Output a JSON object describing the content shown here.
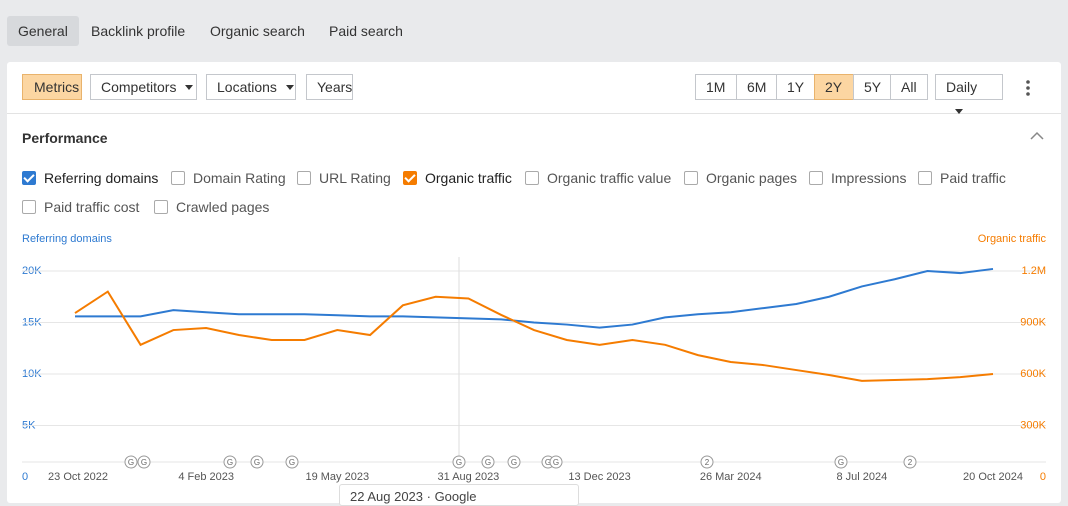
{
  "tabs": [
    "General",
    "Backlink profile",
    "Organic search",
    "Paid search"
  ],
  "toolbar": {
    "left": [
      "Metrics",
      "Competitors",
      "Locations",
      "Years"
    ],
    "ranges": [
      "1M",
      "6M",
      "1Y",
      "2Y",
      "5Y",
      "All"
    ],
    "interval": "Daily"
  },
  "section_title": "Performance",
  "metrics": [
    {
      "label": "Referring domains",
      "checked": true
    },
    {
      "label": "Domain Rating",
      "checked": false
    },
    {
      "label": "URL Rating",
      "checked": false
    },
    {
      "label": "Organic traffic",
      "checked": true
    },
    {
      "label": "Organic traffic value",
      "checked": false
    },
    {
      "label": "Organic pages",
      "checked": false
    },
    {
      "label": "Impressions",
      "checked": false
    },
    {
      "label": "Paid traffic",
      "checked": false
    },
    {
      "label": "Paid traffic cost",
      "checked": false
    },
    {
      "label": "Crawled pages",
      "checked": false
    }
  ],
  "chart_data": {
    "type": "line",
    "x": [
      "23 Oct 2022",
      "18 Nov 2022",
      "14 Dec 2022",
      "9 Jan 2023",
      "4 Feb 2023",
      "2 Mar 2023",
      "28 Mar 2023",
      "23 Apr 2023",
      "19 May 2023",
      "14 Jun 2023",
      "10 Jul 2023",
      "5 Aug 2023",
      "31 Aug 2023",
      "26 Sep 2023",
      "22 Oct 2023",
      "17 Nov 2023",
      "13 Dec 2023",
      "8 Jan 2024",
      "3 Feb 2024",
      "29 Feb 2024",
      "26 Mar 2024",
      "21 Apr 2024",
      "17 May 2024",
      "12 Jun 2024",
      "8 Jul 2024",
      "3 Aug 2024",
      "29 Aug 2024",
      "24 Sep 2024",
      "20 Oct 2024"
    ],
    "xticks": [
      "23 Oct 2022",
      "4 Feb 2023",
      "19 May 2023",
      "31 Aug 2023",
      "13 Dec 2023",
      "26 Mar 2024",
      "8 Jul 2024",
      "20 Oct 2024"
    ],
    "series": [
      {
        "name": "Referring domains",
        "color": "#2e7ad1",
        "values": [
          15600,
          15600,
          15600,
          16200,
          16000,
          15800,
          15800,
          15800,
          15700,
          15600,
          15600,
          15500,
          15400,
          15300,
          15000,
          14800,
          14500,
          14800,
          15500,
          15800,
          16000,
          16400,
          16800,
          17500,
          18500,
          19200,
          20000,
          19800,
          20200
        ]
      },
      {
        "name": "Organic traffic",
        "color": "#f57c00",
        "axis": "y2",
        "values": [
          955000,
          1080000,
          770000,
          856000,
          868000,
          827000,
          798000,
          798000,
          856000,
          827000,
          1000000,
          1050000,
          1040000,
          944000,
          856000,
          798000,
          770000,
          798000,
          770000,
          710000,
          670000,
          652000,
          623000,
          594000,
          560000,
          565000,
          570000,
          582000,
          600000
        ]
      }
    ],
    "ylim": [
      0,
      20000
    ],
    "yticks": [
      0,
      {
        "value": 5000,
        "label": "5K"
      },
      {
        "value": 10000,
        "label": "10K"
      },
      {
        "value": 15000,
        "label": "15K"
      },
      {
        "value": 20000,
        "label": "20K"
      }
    ],
    "y2lim": [
      0,
      1200000
    ],
    "y2ticks": [
      0,
      {
        "value": 300000,
        "label": "300K"
      },
      {
        "value": 600000,
        "label": "600K"
      },
      {
        "value": 900000,
        "label": "900K"
      },
      {
        "value": 1200000,
        "label": "1.2M"
      }
    ],
    "grid": true,
    "event_markers": [
      "G",
      "G",
      "G",
      "G",
      "G",
      "G",
      "G",
      "G",
      "G",
      "G",
      "2",
      "G",
      "2"
    ],
    "tooltip": "22 Aug 2023 · Google"
  }
}
